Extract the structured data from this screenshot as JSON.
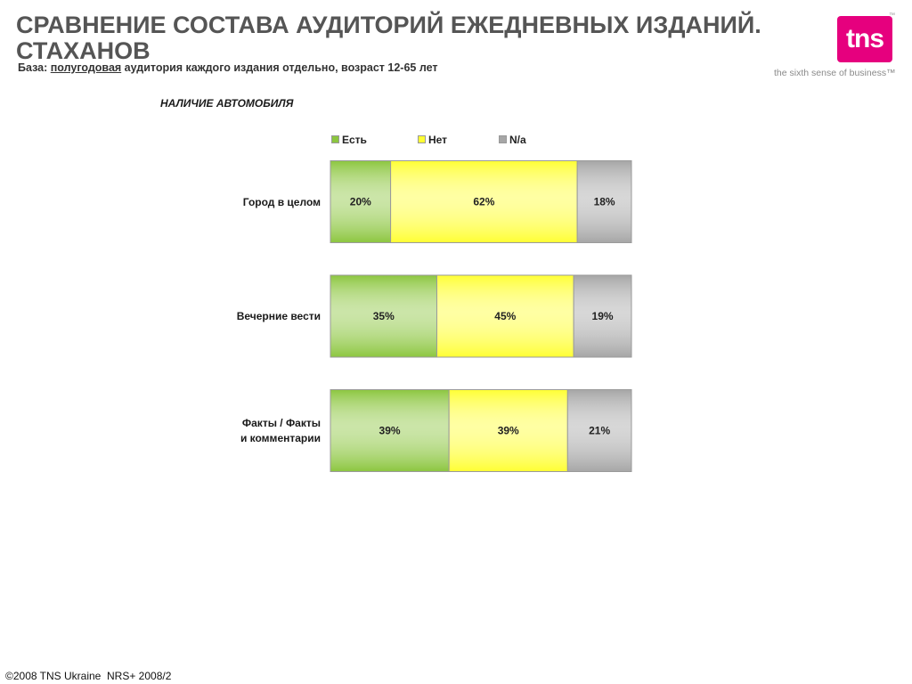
{
  "title_line1": "СРАВНЕНИЕ СОСТАВА АУДИТОРИЙ ЕЖЕДНЕВНЫХ ИЗДАНИЙ.",
  "title_line2": "СТАХАНОВ",
  "subtitle": {
    "prefix": "База: ",
    "underlined": "полугодовая",
    "rest": " аудитория каждого издания отдельно, возраст 12-65 лет"
  },
  "logo": {
    "text": "tns",
    "tm": "™",
    "tagline": "the sixth sense of business™"
  },
  "section_title": "НАЛИЧИЕ АВТОМОБИЛЯ",
  "footer": "©2008 TNS Ukraine  NRS+ 2008/2",
  "colors": {
    "green": "#8cc63f",
    "yellow": "#ffff33",
    "gray": "#a6a6a6"
  },
  "chart_data": {
    "type": "bar",
    "orientation": "horizontal-stacked-100",
    "categories": [
      "Город в целом",
      "Вечерние вести",
      "Факты / Факты и комментарии"
    ],
    "category_lines": [
      [
        "Город в целом"
      ],
      [
        "Вечерние вести"
      ],
      [
        "Факты / Факты",
        "и комментарии"
      ]
    ],
    "series": [
      {
        "name": "Есть",
        "values": [
          20,
          35,
          39
        ]
      },
      {
        "name": "Нет",
        "values": [
          62,
          45,
          39
        ]
      },
      {
        "name": "N/a",
        "values": [
          18,
          19,
          21
        ]
      }
    ],
    "value_suffix": "%",
    "legend_position": "top"
  }
}
